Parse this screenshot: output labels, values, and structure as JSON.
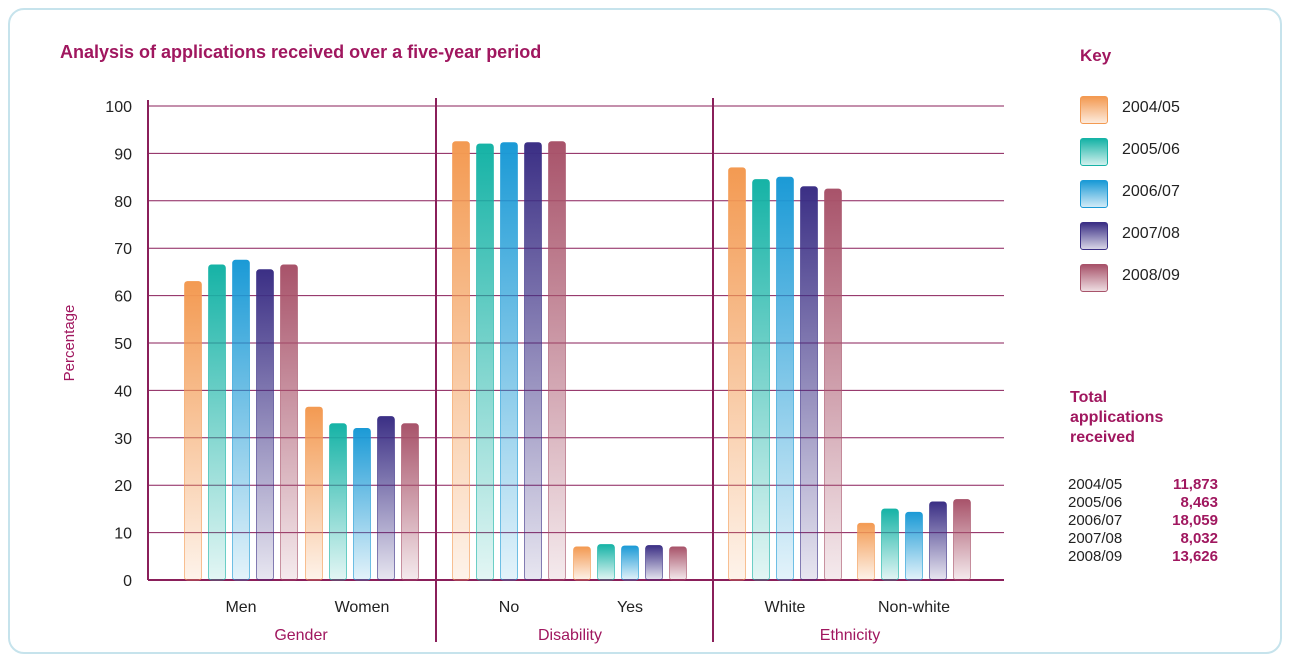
{
  "title": "Analysis of applications received over a five-year period",
  "key": {
    "title": "Key",
    "items": [
      {
        "label": "2004/05",
        "color": "#f39a52"
      },
      {
        "label": "2005/06",
        "color": "#16b3a6"
      },
      {
        "label": "2006/07",
        "color": "#1b9ad6"
      },
      {
        "label": "2007/08",
        "color": "#3b2f85"
      },
      {
        "label": "2008/09",
        "color": "#a8536a"
      }
    ]
  },
  "totals": {
    "title": "Total applications received",
    "rows": [
      {
        "year": "2004/05",
        "value": "11,873"
      },
      {
        "year": "2005/06",
        "value": "8,463"
      },
      {
        "year": "2006/07",
        "value": "18,059"
      },
      {
        "year": "2007/08",
        "value": "8,032"
      },
      {
        "year": "2008/09",
        "value": "13,626"
      }
    ]
  },
  "chart_data": {
    "type": "bar",
    "title": "Analysis of applications received over a five-year period",
    "ylabel": "Percentage",
    "ylim": [
      0,
      100
    ],
    "yticks": [
      0,
      10,
      20,
      30,
      40,
      50,
      60,
      70,
      80,
      90,
      100
    ],
    "grid": true,
    "legend_placement": "right",
    "categories": [
      "Men",
      "Women",
      "No",
      "Yes",
      "White",
      "Non-white"
    ],
    "groups": [
      {
        "label": "Gender",
        "categories": [
          "Men",
          "Women"
        ]
      },
      {
        "label": "Disability",
        "categories": [
          "No",
          "Yes"
        ]
      },
      {
        "label": "Ethnicity",
        "categories": [
          "White",
          "Non-white"
        ]
      }
    ],
    "series": [
      {
        "name": "2004/05",
        "values": [
          63,
          36.5,
          92.5,
          7,
          87,
          12
        ]
      },
      {
        "name": "2005/06",
        "values": [
          66.5,
          33,
          92,
          7.5,
          84.5,
          15
        ]
      },
      {
        "name": "2006/07",
        "values": [
          67.5,
          32,
          92.3,
          7.2,
          85,
          14.3
        ]
      },
      {
        "name": "2007/08",
        "values": [
          65.5,
          34.5,
          92.3,
          7.3,
          83,
          16.5
        ]
      },
      {
        "name": "2008/09",
        "values": [
          66.5,
          33,
          92.5,
          7,
          82.5,
          17
        ]
      }
    ]
  }
}
